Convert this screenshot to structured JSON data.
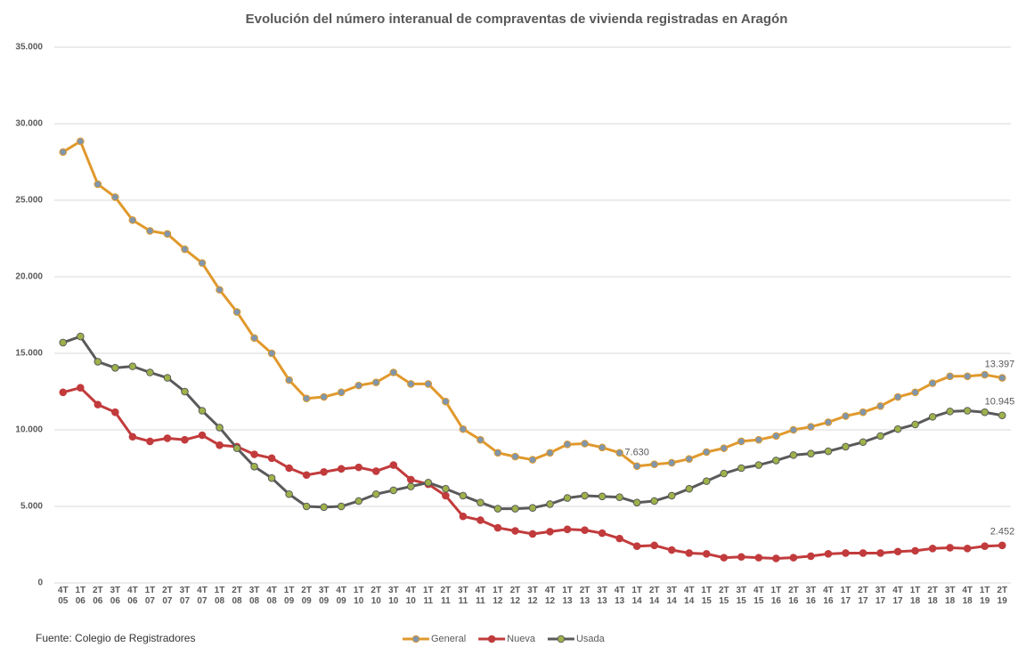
{
  "chart_data": {
    "type": "line",
    "title": "Evolución del número interanual de compraventas de vivienda registradas en Aragón",
    "annotations": [
      "Fuente: Colegio de Registradores"
    ],
    "categories": [
      "4T 05",
      "1T 06",
      "2T 06",
      "3T 06",
      "4T 06",
      "1T 07",
      "2T 07",
      "3T 07",
      "4T 07",
      "1T 08",
      "2T 08",
      "3T 08",
      "4T 08",
      "1T 09",
      "2T 09",
      "3T 09",
      "4T 09",
      "1T 10",
      "2T 10",
      "3T 10",
      "4T 10",
      "1T 11",
      "2T 11",
      "3T 11",
      "4T 11",
      "1T 12",
      "2T 12",
      "3T 12",
      "4T 12",
      "1T 13",
      "2T 13",
      "3T 13",
      "4T 13",
      "1T 14",
      "2T 14",
      "3T 14",
      "4T 14",
      "1T 15",
      "2T 15",
      "3T 15",
      "4T 15",
      "1T 16",
      "2T 16",
      "3T 16",
      "4T 16",
      "1T 17",
      "2T 17",
      "3T 17",
      "4T 17",
      "1T 18",
      "2T 18",
      "3T 18",
      "4T 18",
      "1T 19",
      "2T 19"
    ],
    "series": [
      {
        "name": "General",
        "color": "#e0992c",
        "marker_color": "#8096ab",
        "values": [
          28150,
          28850,
          26050,
          25200,
          23700,
          23000,
          22800,
          21800,
          20900,
          19150,
          17700,
          16000,
          15000,
          13250,
          12050,
          12150,
          12450,
          12900,
          13100,
          13750,
          13000,
          13000,
          11850,
          10050,
          9350,
          8500,
          8250,
          8050,
          8500,
          9050,
          9100,
          8850,
          8500,
          7630,
          7750,
          7850,
          8100,
          8550,
          8800,
          9250,
          9350,
          9600,
          10000,
          10200,
          10500,
          10900,
          11150,
          11550,
          12150,
          12450,
          13050,
          13500,
          13500,
          13600,
          13397
        ],
        "value_labels": [
          null,
          null,
          null,
          null,
          null,
          null,
          null,
          null,
          null,
          null,
          null,
          null,
          null,
          null,
          null,
          null,
          null,
          null,
          null,
          null,
          null,
          null,
          null,
          null,
          null,
          null,
          null,
          null,
          null,
          null,
          null,
          null,
          null,
          "7.630",
          null,
          null,
          null,
          null,
          null,
          null,
          null,
          null,
          null,
          null,
          null,
          null,
          null,
          null,
          null,
          null,
          null,
          null,
          null,
          null,
          "13.397"
        ]
      },
      {
        "name": "Nueva",
        "color": "#c23b3c",
        "marker_color": "#c23b3c",
        "values": [
          12450,
          12750,
          11650,
          11150,
          9550,
          9250,
          9450,
          9350,
          9650,
          9000,
          8900,
          8400,
          8150,
          7500,
          7050,
          7250,
          7450,
          7550,
          7300,
          7700,
          6750,
          6450,
          5700,
          4350,
          4100,
          3600,
          3400,
          3200,
          3350,
          3500,
          3450,
          3250,
          2900,
          2400,
          2450,
          2150,
          1950,
          1900,
          1650,
          1700,
          1650,
          1600,
          1650,
          1750,
          1900,
          1950,
          1950,
          1950,
          2050,
          2100,
          2250,
          2300,
          2250,
          2400,
          2452
        ],
        "value_labels": [
          null,
          null,
          null,
          null,
          null,
          null,
          null,
          null,
          null,
          null,
          null,
          null,
          null,
          null,
          null,
          null,
          null,
          null,
          null,
          null,
          null,
          null,
          null,
          null,
          null,
          null,
          null,
          null,
          null,
          null,
          null,
          null,
          null,
          null,
          null,
          null,
          null,
          null,
          null,
          null,
          null,
          null,
          null,
          null,
          null,
          null,
          null,
          null,
          null,
          null,
          null,
          null,
          null,
          null,
          "2.452"
        ]
      },
      {
        "name": "Usada",
        "color": "#5a5a5a",
        "marker_color": "#9db24a",
        "values": [
          15700,
          16100,
          14450,
          14050,
          14150,
          13750,
          13400,
          12500,
          11250,
          10150,
          8800,
          7600,
          6850,
          5800,
          5000,
          4950,
          5000,
          5350,
          5800,
          6050,
          6300,
          6550,
          6150,
          5700,
          5250,
          4850,
          4850,
          4900,
          5150,
          5550,
          5700,
          5650,
          5600,
          5250,
          5350,
          5700,
          6150,
          6650,
          7150,
          7500,
          7700,
          8000,
          8350,
          8450,
          8600,
          8900,
          9200,
          9600,
          10050,
          10350,
          10850,
          11200,
          11250,
          11150,
          10945
        ],
        "value_labels": [
          null,
          null,
          null,
          null,
          null,
          null,
          null,
          null,
          null,
          null,
          null,
          null,
          null,
          null,
          null,
          null,
          null,
          null,
          null,
          null,
          null,
          null,
          null,
          null,
          null,
          null,
          null,
          null,
          null,
          null,
          null,
          null,
          null,
          null,
          null,
          null,
          null,
          null,
          null,
          null,
          null,
          null,
          null,
          null,
          null,
          null,
          null,
          null,
          null,
          null,
          null,
          null,
          null,
          null,
          "10.945"
        ]
      }
    ],
    "ylim": [
      0,
      35000
    ],
    "yticks": [
      0,
      {
        "value": 5000,
        "label": "5.000"
      },
      {
        "value": 10000,
        "label": "10.000"
      },
      {
        "value": 15000,
        "label": "15.000"
      },
      {
        "value": 20000,
        "label": "20.000"
      },
      {
        "value": 25000,
        "label": "25.000"
      },
      {
        "value": 30000,
        "label": "30.000"
      },
      {
        "value": 35000,
        "label": "35.000"
      }
    ],
    "grid": true,
    "legend": "bottom"
  }
}
